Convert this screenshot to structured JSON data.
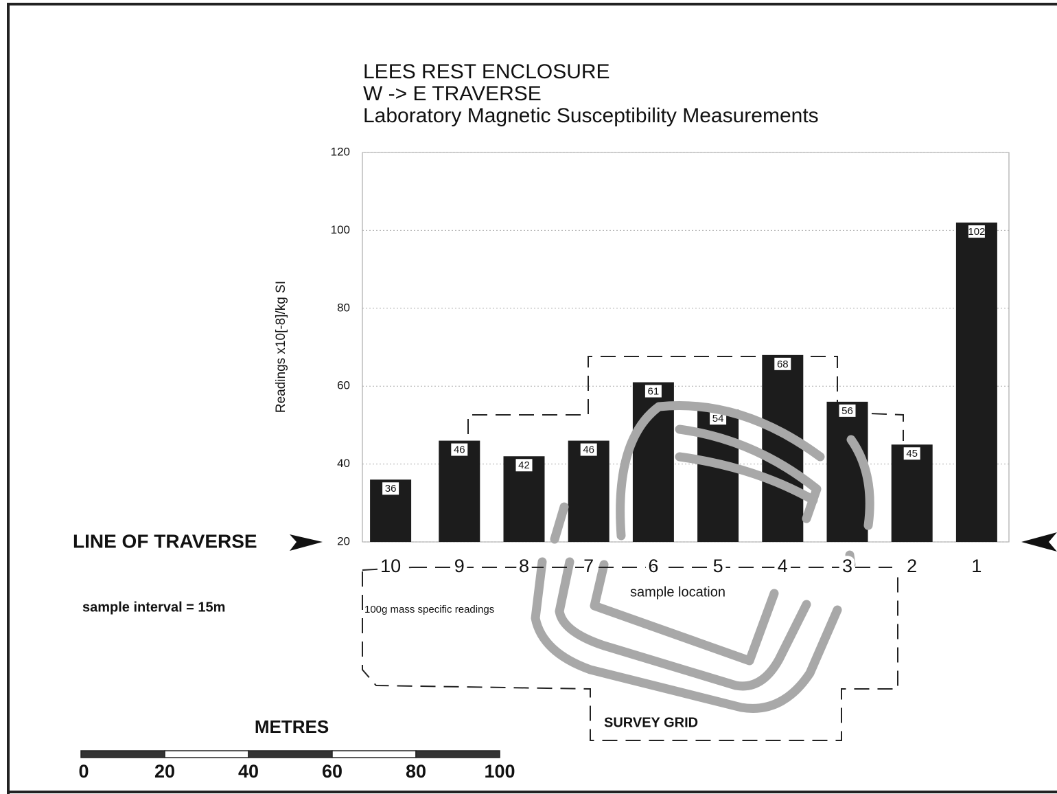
{
  "chart_data": {
    "type": "bar",
    "title": [
      "LEES REST ENCLOSURE",
      "W -> E TRAVERSE",
      "Laboratory Magnetic Susceptibility Measurements"
    ],
    "y_label": "Readings x10[-8]/kg SI",
    "categories": [
      "10",
      "9",
      "8",
      "7",
      "6",
      "5",
      "4",
      "3",
      "2",
      "1"
    ],
    "values": [
      36,
      46,
      42,
      46,
      61,
      54,
      68,
      56,
      45,
      102
    ],
    "color": "#1c1c1c",
    "ylim": [
      20,
      120
    ],
    "yticks": [
      20,
      40,
      60,
      80,
      100,
      120
    ],
    "grid": true,
    "annotations": {
      "line_of_traverse": "LINE OF TRAVERSE",
      "sample_interval": "sample interval = 15m",
      "sample_location": "sample location",
      "mass_note": "100g mass specific readings",
      "survey_grid": "SURVEY GRID"
    }
  },
  "scale_bar": {
    "title": "METRES",
    "ticks": [
      0,
      20,
      40,
      60,
      80,
      100
    ]
  }
}
